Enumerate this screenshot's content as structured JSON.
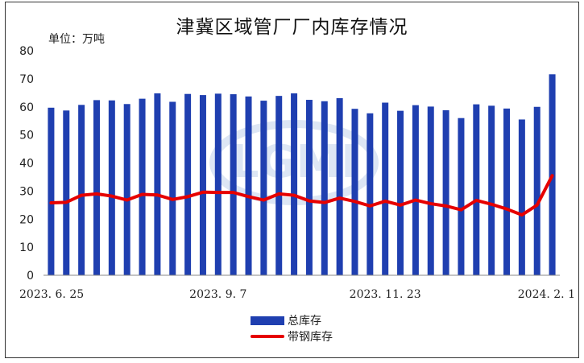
{
  "title": "津冀区域管厂厂内库存情况",
  "unit_label": "单位：万吨",
  "colors": {
    "bar": "#1f3fb0",
    "line": "#e60000",
    "axis": "#888888"
  },
  "watermark_text": "LGMI",
  "chart_data": {
    "type": "bar",
    "title": "津冀区域管厂厂内库存情况",
    "ylim": [
      0,
      80
    ],
    "yticks": [
      0,
      10,
      20,
      30,
      40,
      50,
      60,
      70,
      80
    ],
    "grid": false,
    "legend_position": "bottom",
    "x_tick_labels": [
      {
        "index": 0,
        "label": "2023. 6. 25"
      },
      {
        "index": 11,
        "label": "2023. 9. 7"
      },
      {
        "index": 22,
        "label": "2023. 11. 23"
      },
      {
        "index": 33,
        "label": "2024. 2. 1"
      }
    ],
    "series": [
      {
        "name": "总库存",
        "type": "bar",
        "values": [
          59.7,
          58.7,
          60.7,
          62.4,
          62.3,
          61.0,
          62.9,
          64.8,
          61.8,
          64.6,
          64.2,
          64.7,
          64.5,
          63.7,
          62.2,
          63.9,
          64.8,
          62.5,
          62.0,
          63.1,
          59.3,
          57.7,
          61.5,
          58.6,
          60.6,
          60.1,
          58.8,
          56.0,
          60.9,
          60.4,
          59.4,
          55.5,
          60.0,
          71.6
        ]
      },
      {
        "name": "带钢库存",
        "type": "line",
        "values": [
          25.8,
          26.0,
          28.5,
          29.0,
          28.2,
          26.8,
          28.8,
          28.6,
          27.0,
          28.0,
          29.6,
          29.5,
          29.5,
          28.0,
          26.8,
          29.0,
          28.5,
          26.5,
          25.9,
          27.5,
          26.3,
          24.7,
          26.4,
          25.0,
          26.8,
          25.5,
          24.7,
          23.3,
          26.7,
          25.3,
          23.6,
          21.5,
          25.0,
          35.5
        ]
      }
    ]
  }
}
